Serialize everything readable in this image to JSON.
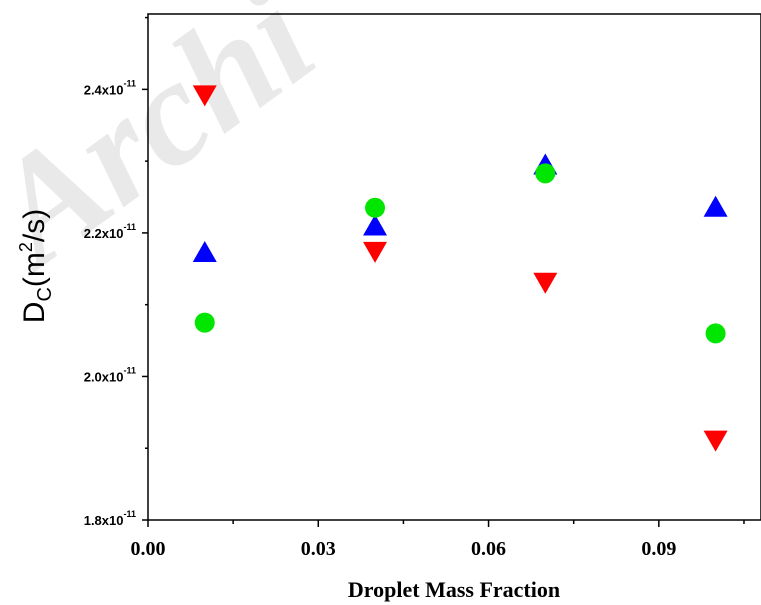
{
  "watermark": "Archi",
  "chart_data": {
    "type": "scatter",
    "xlabel": "Droplet Mass Fraction",
    "ylabel": {
      "base": "D",
      "subscript": "C",
      "unit_open": "(m",
      "superscript": "2",
      "unit_close": "/s)"
    },
    "xlim": [
      0.0,
      0.108
    ],
    "ylim": [
      1.8e-11,
      2.505e-11
    ],
    "x_ticks": [
      0.0,
      0.03,
      0.06,
      0.09
    ],
    "x_tick_labels": [
      "0.00",
      "0.03",
      "0.06",
      "0.09"
    ],
    "y_ticks": [
      1.8e-11,
      2e-11,
      2.2e-11,
      2.4e-11
    ],
    "y_tick_labels": [
      {
        "mantissa": "1.8x10",
        "exponent": "-11"
      },
      {
        "mantissa": "2.0x10",
        "exponent": "-11"
      },
      {
        "mantissa": "2.2x10",
        "exponent": "-11"
      },
      {
        "mantissa": "2.4x10",
        "exponent": "-11"
      }
    ],
    "grid": false,
    "legend": "none",
    "series": [
      {
        "marker": "triangle-up",
        "color": "#0000ff",
        "points": [
          {
            "x": 0.01,
            "y": 2.172e-11
          },
          {
            "x": 0.04,
            "y": 2.209e-11
          },
          {
            "x": 0.07,
            "y": 2.294e-11
          },
          {
            "x": 0.1,
            "y": 2.235e-11
          }
        ]
      },
      {
        "marker": "circle",
        "color": "#00e600",
        "points": [
          {
            "x": 0.01,
            "y": 2.075e-11
          },
          {
            "x": 0.04,
            "y": 2.235e-11
          },
          {
            "x": 0.07,
            "y": 2.283e-11
          },
          {
            "x": 0.1,
            "y": 2.06e-11
          }
        ]
      },
      {
        "marker": "triangle-down",
        "color": "#ff0000",
        "points": [
          {
            "x": 0.01,
            "y": 2.393e-11
          },
          {
            "x": 0.04,
            "y": 2.175e-11
          },
          {
            "x": 0.07,
            "y": 2.132e-11
          },
          {
            "x": 0.1,
            "y": 1.912e-11
          }
        ]
      }
    ]
  }
}
